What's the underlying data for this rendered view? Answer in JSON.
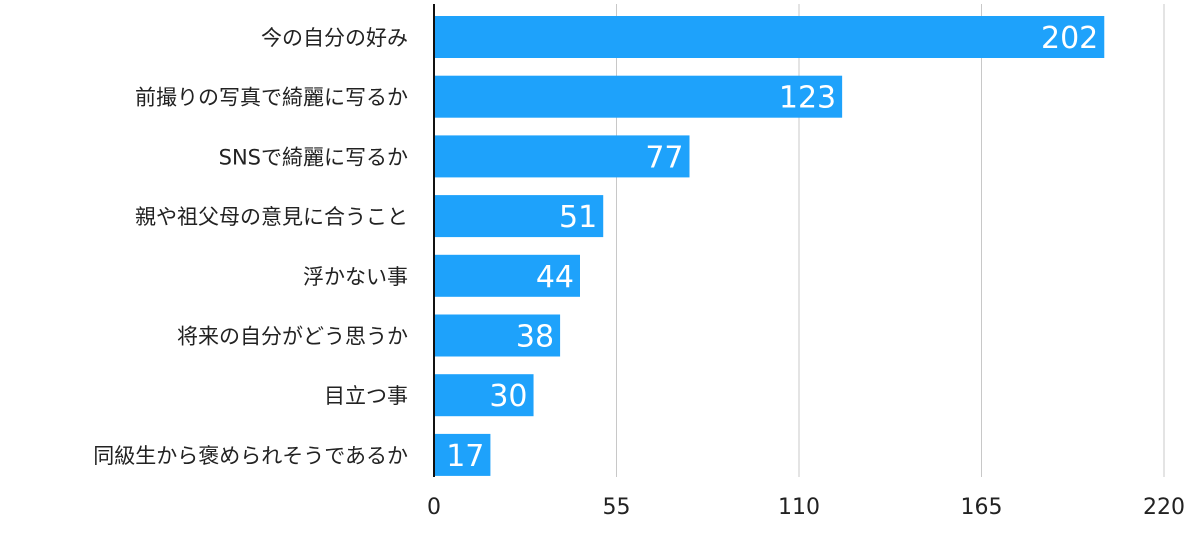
{
  "chart_data": {
    "type": "bar",
    "orientation": "horizontal",
    "categories": [
      "今の自分の好み",
      "前撮りの写真で綺麗に写るか",
      "SNSで綺麗に写るか",
      "親や祖父母の意見に合うこと",
      "浮かない事",
      "将来の自分がどう思うか",
      "目立つ事",
      "同級生から褒められそうであるか"
    ],
    "values": [
      202,
      123,
      77,
      51,
      44,
      38,
      30,
      17
    ],
    "xlim": [
      0,
      220
    ],
    "xticks": [
      0,
      55,
      110,
      165,
      220
    ],
    "grid": true,
    "data_labels": true,
    "bar_color": "#1ea2fb",
    "label_color": "#ffffff",
    "title": "",
    "xlabel": "",
    "ylabel": ""
  }
}
